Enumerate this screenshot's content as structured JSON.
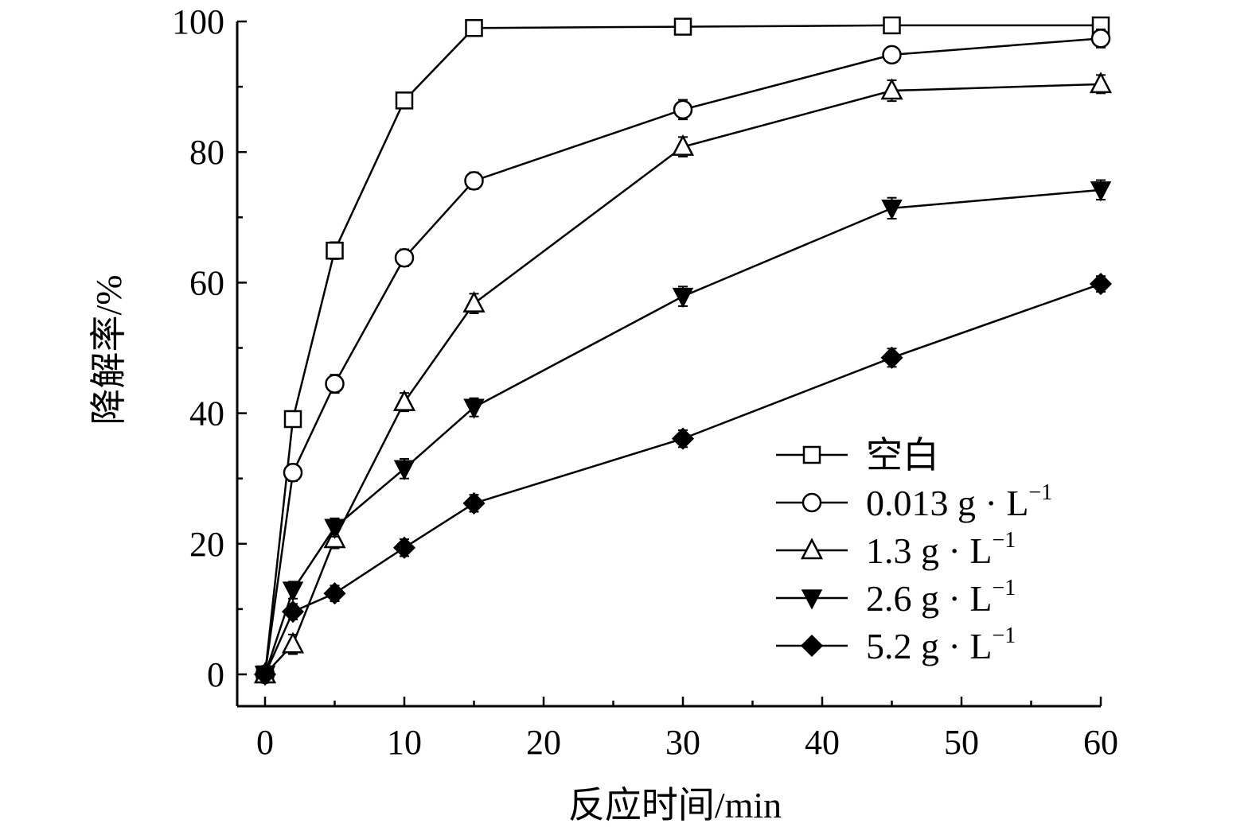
{
  "chart_data": {
    "type": "line",
    "title": "",
    "xlabel": "反应时间/min",
    "ylabel": "降解率/%",
    "xlim": [
      -2,
      60
    ],
    "ylim": [
      -5,
      100
    ],
    "xticks": [
      0,
      10,
      20,
      30,
      40,
      50,
      60
    ],
    "yticks": [
      0,
      20,
      40,
      60,
      80,
      100
    ],
    "x": [
      0,
      2,
      5,
      10,
      15,
      30,
      45,
      60
    ],
    "legend_position": "bottom-right",
    "series": [
      {
        "name": "空白",
        "unit": "",
        "marker": "square-open",
        "values": [
          0,
          39.1,
          64.9,
          87.9,
          99.0,
          99.2,
          99.4,
          99.4
        ],
        "error": [
          0.5,
          1.2,
          1.3,
          1.2,
          1.0,
          0.8,
          0.7,
          0.8
        ]
      },
      {
        "name": "0.013 g · L",
        "unit": "−1",
        "marker": "circle-open",
        "values": [
          0,
          30.9,
          44.5,
          63.8,
          75.6,
          86.5,
          94.9,
          97.4
        ],
        "error": [
          0.5,
          1.3,
          1.4,
          1.3,
          1.3,
          1.5,
          1.2,
          1.4
        ]
      },
      {
        "name": "1.3 g · L",
        "unit": "−1",
        "marker": "triangle-up-open",
        "values": [
          0,
          4.6,
          20.7,
          41.7,
          56.8,
          80.8,
          89.4,
          90.4
        ],
        "error": [
          0.5,
          1.5,
          1.4,
          1.4,
          1.5,
          1.5,
          1.6,
          1.4
        ]
      },
      {
        "name": "2.6 g · L",
        "unit": "−1",
        "marker": "triangle-down-filled",
        "values": [
          0,
          12.9,
          22.5,
          31.5,
          40.9,
          57.9,
          71.4,
          74.2
        ],
        "error": [
          0.5,
          1.3,
          1.4,
          1.5,
          1.4,
          1.5,
          1.6,
          1.5
        ]
      },
      {
        "name": "5.2 g · L",
        "unit": "−1",
        "marker": "diamond-filled",
        "values": [
          0,
          9.6,
          12.4,
          19.4,
          26.2,
          36.1,
          48.5,
          59.8
        ],
        "error": [
          0.5,
          1.2,
          1.2,
          1.3,
          1.3,
          1.3,
          1.4,
          1.2
        ]
      }
    ]
  }
}
